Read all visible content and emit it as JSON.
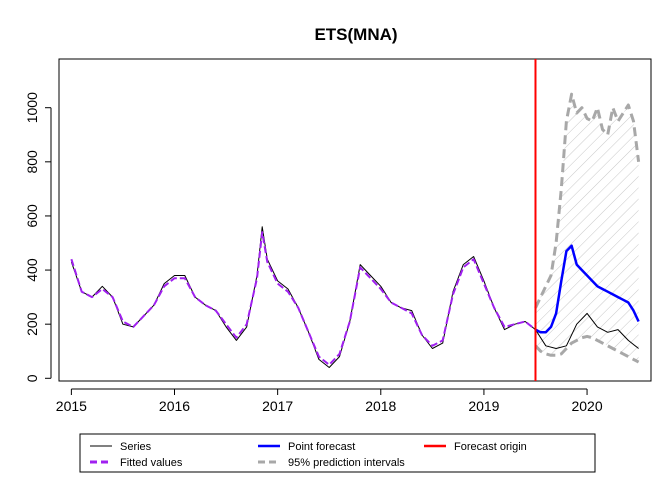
{
  "chart_data": {
    "type": "line",
    "title": "ETS(MNA)",
    "xlabel": "",
    "ylabel": "",
    "xlim": [
      2014.88,
      2020.62
    ],
    "ylim": [
      -10,
      1180
    ],
    "x_ticks": [
      2015,
      2016,
      2017,
      2018,
      2019,
      2020
    ],
    "y_ticks": [
      0,
      200,
      400,
      600,
      800,
      1000
    ],
    "forecast_origin": 2019.5,
    "legend_placement": "bottom",
    "legend": [
      {
        "label": "Series",
        "color": "#000000",
        "style": "solid"
      },
      {
        "label": "Fitted values",
        "color": "#a020f0",
        "style": "dashed"
      },
      {
        "label": "Point forecast",
        "color": "#0000ff",
        "style": "solid"
      },
      {
        "label": "95% prediction intervals",
        "color": "#a8a8a8",
        "style": "dashed"
      },
      {
        "label": "Forecast origin",
        "color": "#ff0000",
        "style": "solid"
      }
    ],
    "series": [
      {
        "name": "Series",
        "color": "#000000",
        "x": [
          2015.0,
          2015.1,
          2015.2,
          2015.3,
          2015.4,
          2015.5,
          2015.6,
          2015.7,
          2015.8,
          2015.9,
          2016.0,
          2016.1,
          2016.2,
          2016.3,
          2016.4,
          2016.5,
          2016.6,
          2016.7,
          2016.8,
          2016.85,
          2016.9,
          2017.0,
          2017.1,
          2017.2,
          2017.3,
          2017.4,
          2017.5,
          2017.6,
          2017.7,
          2017.8,
          2017.9,
          2018.0,
          2018.1,
          2018.2,
          2018.3,
          2018.4,
          2018.5,
          2018.6,
          2018.7,
          2018.8,
          2018.9,
          2019.0,
          2019.1,
          2019.2,
          2019.3,
          2019.4,
          2019.5,
          2019.6,
          2019.7,
          2019.8,
          2019.9,
          2020.0,
          2020.1,
          2020.2,
          2020.3,
          2020.4,
          2020.5
        ],
        "y": [
          430,
          320,
          300,
          340,
          300,
          200,
          190,
          230,
          270,
          350,
          380,
          380,
          300,
          270,
          250,
          190,
          140,
          190,
          380,
          560,
          440,
          360,
          330,
          260,
          170,
          70,
          40,
          80,
          210,
          420,
          380,
          340,
          280,
          260,
          250,
          160,
          110,
          130,
          320,
          420,
          450,
          360,
          260,
          180,
          200,
          210,
          180,
          120,
          110,
          120,
          200,
          240,
          190,
          170,
          180,
          140,
          110
        ]
      },
      {
        "name": "Fitted values",
        "color": "#a020f0",
        "x": [
          2015.0,
          2015.1,
          2015.2,
          2015.3,
          2015.4,
          2015.5,
          2015.6,
          2015.7,
          2015.8,
          2015.9,
          2016.0,
          2016.1,
          2016.2,
          2016.3,
          2016.4,
          2016.5,
          2016.6,
          2016.7,
          2016.8,
          2016.85,
          2016.9,
          2017.0,
          2017.1,
          2017.2,
          2017.3,
          2017.4,
          2017.5,
          2017.6,
          2017.7,
          2017.8,
          2017.9,
          2018.0,
          2018.1,
          2018.2,
          2018.3,
          2018.4,
          2018.5,
          2018.6,
          2018.7,
          2018.8,
          2018.9,
          2019.0,
          2019.1,
          2019.2,
          2019.3,
          2019.4,
          2019.5
        ],
        "y": [
          440,
          320,
          300,
          330,
          300,
          210,
          190,
          230,
          270,
          340,
          370,
          370,
          300,
          270,
          250,
          200,
          150,
          200,
          370,
          540,
          430,
          350,
          320,
          260,
          170,
          80,
          50,
          90,
          210,
          410,
          370,
          330,
          280,
          260,
          240,
          160,
          120,
          140,
          310,
          410,
          440,
          350,
          260,
          190,
          200,
          210,
          180
        ]
      },
      {
        "name": "Point forecast",
        "color": "#0000ff",
        "x": [
          2019.5,
          2019.55,
          2019.6,
          2019.65,
          2019.7,
          2019.75,
          2019.8,
          2019.85,
          2019.9,
          2019.95,
          2020.0,
          2020.05,
          2020.1,
          2020.15,
          2020.2,
          2020.25,
          2020.3,
          2020.35,
          2020.4,
          2020.45,
          2020.5
        ],
        "y": [
          180,
          170,
          170,
          190,
          240,
          360,
          470,
          490,
          420,
          400,
          380,
          360,
          340,
          330,
          320,
          310,
          300,
          290,
          280,
          250,
          210
        ]
      },
      {
        "name": "95% prediction intervals (upper)",
        "color": "#a8a8a8",
        "x": [
          2019.5,
          2019.55,
          2019.6,
          2019.65,
          2019.7,
          2019.75,
          2019.8,
          2019.85,
          2019.9,
          2019.95,
          2020.0,
          2020.05,
          2020.1,
          2020.15,
          2020.2,
          2020.25,
          2020.3,
          2020.35,
          2020.4,
          2020.45,
          2020.5
        ],
        "y": [
          260,
          300,
          340,
          380,
          500,
          700,
          950,
          1050,
          980,
          1000,
          960,
          950,
          1000,
          920,
          900,
          1000,
          950,
          980,
          1010,
          950,
          800
        ]
      },
      {
        "name": "95% prediction intervals (lower)",
        "color": "#a8a8a8",
        "x": [
          2019.5,
          2019.55,
          2019.6,
          2019.65,
          2019.7,
          2019.75,
          2019.8,
          2019.85,
          2019.9,
          2019.95,
          2020.0,
          2020.05,
          2020.1,
          2020.15,
          2020.2,
          2020.25,
          2020.3,
          2020.35,
          2020.4,
          2020.45,
          2020.5
        ],
        "y": [
          120,
          100,
          90,
          85,
          85,
          90,
          110,
          130,
          140,
          150,
          155,
          150,
          140,
          130,
          120,
          110,
          100,
          90,
          80,
          70,
          60
        ]
      }
    ]
  }
}
